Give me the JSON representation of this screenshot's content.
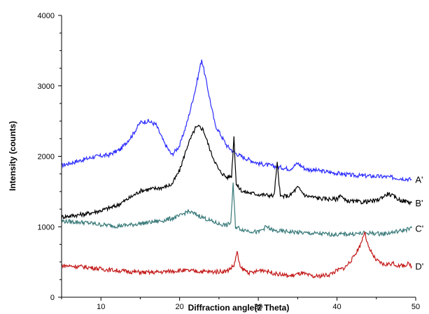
{
  "chart_data": {
    "type": "line",
    "title": "",
    "xlabel": "Diffraction angle(2 Theta)",
    "ylabel": "Intensity (counts)",
    "xlim": [
      5,
      50
    ],
    "ylim": [
      0,
      4000
    ],
    "x_ticks": [
      10,
      20,
      30,
      40,
      50
    ],
    "y_ticks": [
      0,
      1000,
      2000,
      3000,
      4000
    ],
    "grid": false,
    "legend": "inline labels at right end of each trace",
    "series": [
      {
        "name": "A'",
        "color": "#2b2bff",
        "x": [
          5,
          7,
          9,
          11,
          12.5,
          14,
          15,
          16,
          17,
          18,
          19,
          20,
          21,
          22,
          22.8,
          23.5,
          24.5,
          26,
          27,
          28,
          30,
          32,
          34,
          35,
          36,
          38,
          40,
          42,
          44,
          46,
          48,
          49.5
        ],
        "y": [
          1870,
          1930,
          1990,
          2020,
          2100,
          2300,
          2480,
          2500,
          2450,
          2200,
          2020,
          2150,
          2500,
          2950,
          3380,
          3000,
          2450,
          2150,
          2050,
          1990,
          1900,
          1860,
          1820,
          1900,
          1820,
          1790,
          1760,
          1730,
          1720,
          1710,
          1690,
          1670
        ]
      },
      {
        "name": "B'",
        "color": "#000000",
        "x": [
          5,
          8,
          10,
          12,
          13.5,
          14.5,
          15,
          16,
          18,
          19,
          20,
          21,
          22,
          22.5,
          23,
          24,
          25,
          26,
          26.6,
          26.9,
          27.2,
          28,
          30,
          32,
          32.4,
          32.8,
          34,
          35,
          36,
          38,
          40,
          40.4,
          41,
          43,
          45,
          46.5,
          48,
          49.5
        ],
        "y": [
          1140,
          1180,
          1230,
          1300,
          1400,
          1470,
          1510,
          1530,
          1560,
          1600,
          1800,
          2150,
          2400,
          2420,
          2380,
          2050,
          1800,
          1700,
          1720,
          2280,
          1600,
          1500,
          1460,
          1440,
          1900,
          1430,
          1440,
          1560,
          1440,
          1400,
          1390,
          1460,
          1370,
          1350,
          1370,
          1470,
          1380,
          1340
        ]
      },
      {
        "name": "C'",
        "color": "#3a7a7a",
        "x": [
          5,
          8,
          10,
          12,
          14,
          16,
          18,
          20,
          21,
          22,
          23,
          24,
          25,
          26,
          26.5,
          26.8,
          27.1,
          28,
          30,
          31,
          32,
          34,
          36,
          38,
          40,
          42,
          44,
          46,
          48,
          49.5
        ],
        "y": [
          1080,
          1060,
          1030,
          1010,
          1030,
          1060,
          1090,
          1150,
          1220,
          1180,
          1130,
          1080,
          1040,
          1020,
          1060,
          1600,
          1000,
          960,
          920,
          1000,
          940,
          930,
          910,
          900,
          890,
          900,
          910,
          900,
          940,
          980
        ]
      },
      {
        "name": "D'",
        "color": "#c41a1a",
        "x": [
          5,
          8,
          10,
          12,
          14,
          16,
          18,
          20,
          22,
          24,
          26,
          26.9,
          27.3,
          27.7,
          29,
          30.5,
          32,
          34,
          35.5,
          37,
          39,
          40,
          41,
          42,
          43,
          43.5,
          44,
          45,
          46,
          47,
          48,
          49,
          49.5
        ],
        "y": [
          450,
          430,
          400,
          380,
          360,
          350,
          360,
          380,
          370,
          360,
          370,
          450,
          640,
          420,
          340,
          390,
          340,
          300,
          340,
          290,
          320,
          380,
          420,
          550,
          750,
          930,
          700,
          520,
          460,
          480,
          440,
          470,
          440
        ]
      }
    ]
  }
}
